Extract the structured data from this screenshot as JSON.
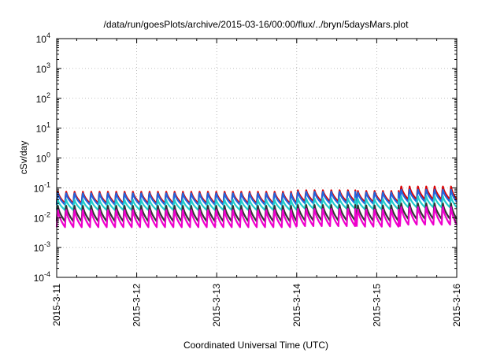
{
  "chart_data": {
    "type": "line",
    "title": "/data/run/goesPlots/archive/2015-03-16/00:00/flux/../bryn/5daysMars.plot",
    "xlabel": "Coordinated Universal Time (UTC)",
    "ylabel": "cSv/day",
    "xaxis": {
      "type": "date",
      "range": [
        "2015-03-11T00:00",
        "2015-03-16T00:00"
      ],
      "ticks": [
        "2015-3-11",
        "2015-3-12",
        "2015-3-13",
        "2015-3-14",
        "2015-3-15",
        "2015-3-16"
      ]
    },
    "yaxis": {
      "scale": "log",
      "ylim": [
        0.0001,
        10000
      ],
      "ticks": [
        {
          "value": 0.0001,
          "base": "10",
          "exp": "-4"
        },
        {
          "value": 0.001,
          "base": "10",
          "exp": "-3"
        },
        {
          "value": 0.01,
          "base": "10",
          "exp": "-2"
        },
        {
          "value": 0.1,
          "base": "10",
          "exp": "-1"
        },
        {
          "value": 1,
          "base": "10",
          "exp": "0"
        },
        {
          "value": 10,
          "base": "10",
          "exp": "1"
        },
        {
          "value": 100,
          "base": "10",
          "exp": "2"
        },
        {
          "value": 1000,
          "base": "10",
          "exp": "3"
        },
        {
          "value": 10000,
          "base": "10",
          "exp": "4"
        }
      ]
    },
    "grid": true,
    "legend": "none",
    "cycle_hours": 2.5,
    "series": [
      {
        "color": "#dd0000",
        "segments": [
          {
            "start": "2015-03-11T00:00",
            "end": "2015-03-14T00:00",
            "peak": 0.085,
            "trough": 0.03
          },
          {
            "start": "2015-03-14T00:00",
            "end": "2015-03-14T18:00",
            "peak": 0.095,
            "trough": 0.035
          },
          {
            "start": "2015-03-14T18:00",
            "end": "2015-03-15T07:00",
            "peak": 0.09,
            "trough": 0.033
          },
          {
            "start": "2015-03-15T07:00",
            "end": "2015-03-16T00:00",
            "peak": 0.13,
            "trough": 0.04
          }
        ]
      },
      {
        "color": "#2266dd",
        "segments": [
          {
            "start": "2015-03-11T00:00",
            "end": "2015-03-14T00:00",
            "peak": 0.075,
            "trough": 0.027
          },
          {
            "start": "2015-03-14T00:00",
            "end": "2015-03-14T18:00",
            "peak": 0.085,
            "trough": 0.03
          },
          {
            "start": "2015-03-14T18:00",
            "end": "2015-03-15T07:00",
            "peak": 0.08,
            "trough": 0.029
          },
          {
            "start": "2015-03-15T07:00",
            "end": "2015-03-16T00:00",
            "peak": 0.1,
            "trough": 0.034
          }
        ]
      },
      {
        "color": "#22cccc",
        "segments": [
          {
            "start": "2015-03-11T00:00",
            "end": "2015-03-14T00:00",
            "peak": 0.045,
            "trough": 0.018
          },
          {
            "start": "2015-03-14T00:00",
            "end": "2015-03-14T18:00",
            "peak": 0.05,
            "trough": 0.02
          },
          {
            "start": "2015-03-14T18:00",
            "end": "2015-03-15T07:00",
            "peak": 0.048,
            "trough": 0.019
          },
          {
            "start": "2015-03-15T07:00",
            "end": "2015-03-16T00:00",
            "peak": 0.06,
            "trough": 0.022
          }
        ]
      },
      {
        "color": "#333333",
        "segments": [
          {
            "start": "2015-03-11T00:00",
            "end": "2015-03-14T00:00",
            "peak": 0.03,
            "trough": 0.0075
          },
          {
            "start": "2015-03-14T00:00",
            "end": "2015-03-14T18:00",
            "peak": 0.032,
            "trough": 0.008
          },
          {
            "start": "2015-03-14T18:00",
            "end": "2015-03-15T07:00",
            "peak": 0.031,
            "trough": 0.0078
          },
          {
            "start": "2015-03-15T07:00",
            "end": "2015-03-16T00:00",
            "peak": 0.036,
            "trough": 0.009
          }
        ]
      },
      {
        "color": "#ee00cc",
        "segments": [
          {
            "start": "2015-03-11T00:00",
            "end": "2015-03-14T00:00",
            "peak": 0.022,
            "trough": 0.0048
          },
          {
            "start": "2015-03-14T00:00",
            "end": "2015-03-14T18:00",
            "peak": 0.024,
            "trough": 0.0052
          },
          {
            "start": "2015-03-14T18:00",
            "end": "2015-03-15T07:00",
            "peak": 0.023,
            "trough": 0.005
          },
          {
            "start": "2015-03-15T07:00",
            "end": "2015-03-16T00:00",
            "peak": 0.028,
            "trough": 0.0058
          }
        ]
      }
    ]
  }
}
